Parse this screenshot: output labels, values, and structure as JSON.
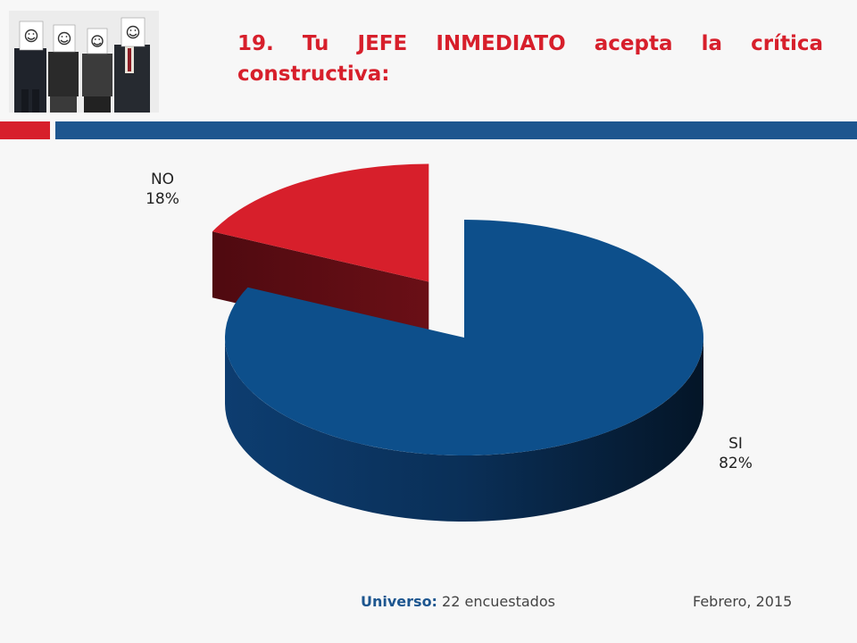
{
  "title": "19. Tu JEFE INMEDIATO acepta la crítica constructiva:",
  "photo_icon": "four-people-holding-smiley-face-signs",
  "colors": {
    "accent_red": "#d71f2b",
    "accent_blue": "#1d568f",
    "slice_si": "#0d4f8b",
    "slice_no": "#d71f2b"
  },
  "chart_data": {
    "type": "pie",
    "style": "3d-exploded",
    "labels": [
      "SI",
      "NO"
    ],
    "values": [
      82,
      18
    ],
    "value_labels": [
      "82%",
      "18%"
    ],
    "colors": [
      "#0d4f8b",
      "#d71f2b"
    ]
  },
  "footer": {
    "universo_label": "Universo:",
    "universo_value": "22 encuestados",
    "date": "Febrero, 2015"
  }
}
